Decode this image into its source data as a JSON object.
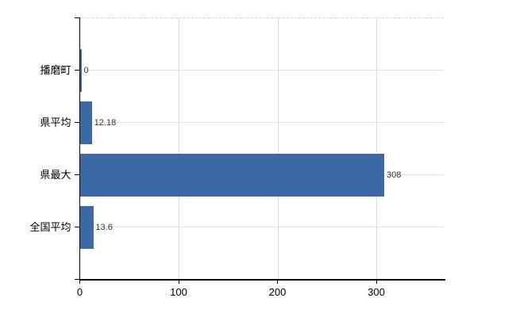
{
  "chart_data": {
    "type": "bar",
    "orientation": "horizontal",
    "title": "",
    "categories": [
      "播磨町",
      "県平均",
      "県最大",
      "全国平均"
    ],
    "values": [
      0,
      12.18,
      308,
      13.6
    ],
    "value_labels": [
      "0",
      "12.18",
      "308",
      "13.6"
    ],
    "x_ticks": [
      0,
      100,
      200,
      300
    ],
    "x_tick_labels": [
      "0",
      "100",
      "200",
      "300"
    ],
    "xlim": [
      0,
      370
    ],
    "grid": true,
    "legend": false,
    "colors": {
      "bar": "#3a69a5",
      "axis": "#000000",
      "vertical_gridline": "#d9d9d9",
      "row_gridline": "#dde3dd",
      "plot_top_border": "#d4d4d4",
      "tick_label_text": "#000000",
      "value_label_text": "#333333"
    }
  }
}
